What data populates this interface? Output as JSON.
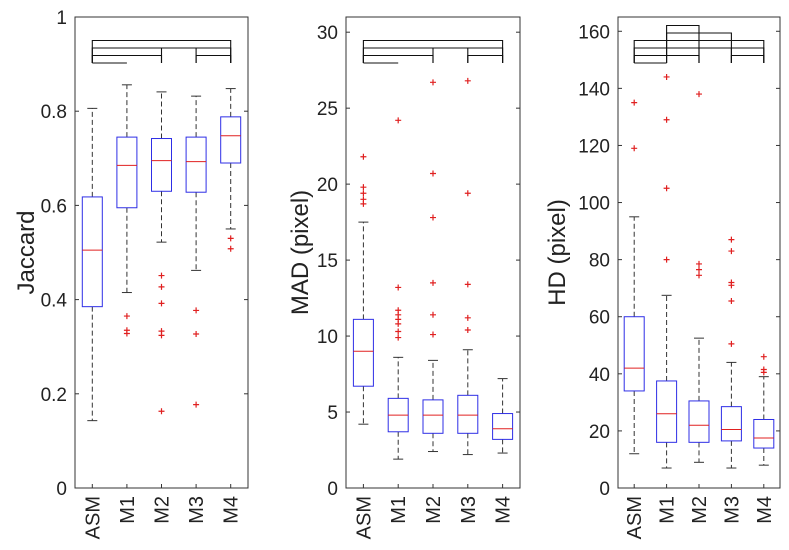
{
  "colors": {
    "box": "#2e2ee6",
    "median": "#e02020",
    "outlier": "#e02020",
    "whisker": "#333333",
    "axis": "#333333",
    "bracket": "#111111"
  },
  "chart_data": [
    {
      "type": "boxplot",
      "ylabel": "Jaccard",
      "ylim": [
        0,
        1
      ],
      "yticks": [
        0,
        0.2,
        0.4,
        0.6,
        0.8,
        1
      ],
      "ytick_labels": [
        "0",
        "0.2",
        "0.4",
        "0.6",
        "0.8",
        "1"
      ],
      "categories": [
        "ASM",
        "M1",
        "M2",
        "M3",
        "M4"
      ],
      "boxes": [
        {
          "whisker_low": 0.143,
          "q1": 0.385,
          "median": 0.505,
          "q3": 0.618,
          "whisker_high": 0.806,
          "outliers": []
        },
        {
          "whisker_low": 0.415,
          "q1": 0.595,
          "median": 0.685,
          "q3": 0.745,
          "whisker_high": 0.856,
          "outliers": [
            0.365,
            0.335,
            0.328
          ]
        },
        {
          "whisker_low": 0.522,
          "q1": 0.63,
          "median": 0.695,
          "q3": 0.742,
          "whisker_high": 0.841,
          "outliers": [
            0.451,
            0.427,
            0.392,
            0.333,
            0.324,
            0.163
          ]
        },
        {
          "whisker_low": 0.462,
          "q1": 0.628,
          "median": 0.693,
          "q3": 0.745,
          "whisker_high": 0.832,
          "outliers": [
            0.377,
            0.327,
            0.177
          ]
        },
        {
          "whisker_low": 0.55,
          "q1": 0.69,
          "median": 0.748,
          "q3": 0.788,
          "whisker_high": 0.848,
          "outliers": [
            0.53,
            0.508
          ]
        }
      ],
      "significance_brackets": [
        {
          "from": "ASM",
          "to": "M4",
          "level": 4
        },
        {
          "from": "ASM",
          "to": "M3",
          "level": 3
        },
        {
          "from": "ASM",
          "to": "M2",
          "level": 2
        },
        {
          "from": "ASM",
          "to": "M1",
          "level": 1
        },
        {
          "from": "M2",
          "to": "M4",
          "level": 3
        },
        {
          "from": "M3",
          "to": "M4",
          "level": 2
        }
      ]
    },
    {
      "type": "boxplot",
      "ylabel": "MAD (pixel)",
      "ylim": [
        0,
        31
      ],
      "yticks": [
        0,
        5,
        10,
        15,
        20,
        25,
        30
      ],
      "ytick_labels": [
        "0",
        "5",
        "10",
        "15",
        "20",
        "25",
        "30"
      ],
      "categories": [
        "ASM",
        "M1",
        "M2",
        "M3",
        "M4"
      ],
      "boxes": [
        {
          "whisker_low": 4.2,
          "q1": 6.7,
          "median": 9.0,
          "q3": 11.1,
          "whisker_high": 17.5,
          "outliers": [
            18.7,
            19.0,
            19.4,
            19.8,
            21.8
          ]
        },
        {
          "whisker_low": 1.9,
          "q1": 3.7,
          "median": 4.8,
          "q3": 5.9,
          "whisker_high": 8.6,
          "outliers": [
            9.9,
            10.3,
            10.8,
            11.1,
            11.4,
            11.7,
            13.2,
            24.2
          ]
        },
        {
          "whisker_low": 2.4,
          "q1": 3.6,
          "median": 4.8,
          "q3": 5.8,
          "whisker_high": 8.4,
          "outliers": [
            10.1,
            11.4,
            13.5,
            17.8,
            20.7,
            26.7
          ]
        },
        {
          "whisker_low": 2.2,
          "q1": 3.6,
          "median": 4.8,
          "q3": 6.1,
          "whisker_high": 9.1,
          "outliers": [
            10.4,
            11.2,
            13.4,
            19.4,
            26.8
          ]
        },
        {
          "whisker_low": 2.3,
          "q1": 3.2,
          "median": 3.9,
          "q3": 4.9,
          "whisker_high": 7.2,
          "outliers": []
        }
      ],
      "significance_brackets": [
        {
          "from": "ASM",
          "to": "M4",
          "level": 4
        },
        {
          "from": "ASM",
          "to": "M3",
          "level": 3
        },
        {
          "from": "ASM",
          "to": "M2",
          "level": 2
        },
        {
          "from": "ASM",
          "to": "M1",
          "level": 1
        },
        {
          "from": "M2",
          "to": "M4",
          "level": 3
        },
        {
          "from": "M3",
          "to": "M4",
          "level": 2
        }
      ]
    },
    {
      "type": "boxplot",
      "ylabel": "HD (pixel)",
      "ylim": [
        0,
        165
      ],
      "yticks": [
        0,
        20,
        40,
        60,
        80,
        100,
        120,
        140,
        160
      ],
      "ytick_labels": [
        "0",
        "20",
        "40",
        "60",
        "80",
        "100",
        "120",
        "140",
        "160"
      ],
      "categories": [
        "ASM",
        "M1",
        "M2",
        "M3",
        "M4"
      ],
      "boxes": [
        {
          "whisker_low": 12,
          "q1": 34,
          "median": 42,
          "q3": 60,
          "whisker_high": 95,
          "outliers": [
            119,
            135
          ]
        },
        {
          "whisker_low": 7,
          "q1": 16,
          "median": 26,
          "q3": 37.5,
          "whisker_high": 67.5,
          "outliers": [
            80,
            105,
            129,
            144
          ]
        },
        {
          "whisker_low": 9,
          "q1": 16,
          "median": 22,
          "q3": 30.5,
          "whisker_high": 52.5,
          "outliers": [
            74.5,
            76.5,
            78.5,
            138
          ]
        },
        {
          "whisker_low": 7,
          "q1": 16.5,
          "median": 20.5,
          "q3": 28.5,
          "whisker_high": 44,
          "outliers": [
            50.5,
            65.5,
            71,
            72,
            83,
            87
          ]
        },
        {
          "whisker_low": 8,
          "q1": 14,
          "median": 17.5,
          "q3": 24,
          "whisker_high": 39,
          "outliers": [
            40.5,
            41.5,
            46
          ]
        }
      ],
      "significance_brackets": [
        {
          "from": "ASM",
          "to": "M4",
          "level": 4
        },
        {
          "from": "ASM",
          "to": "M3",
          "level": 3
        },
        {
          "from": "ASM",
          "to": "M2",
          "level": 2
        },
        {
          "from": "ASM",
          "to": "M1",
          "level": 1
        },
        {
          "from": "M2",
          "to": "M4",
          "level": 3
        },
        {
          "from": "M3",
          "to": "M4",
          "level": 2
        },
        {
          "from": "M1",
          "to": "M3",
          "level": 5
        },
        {
          "from": "M1",
          "to": "M2",
          "level": 6
        }
      ]
    }
  ]
}
